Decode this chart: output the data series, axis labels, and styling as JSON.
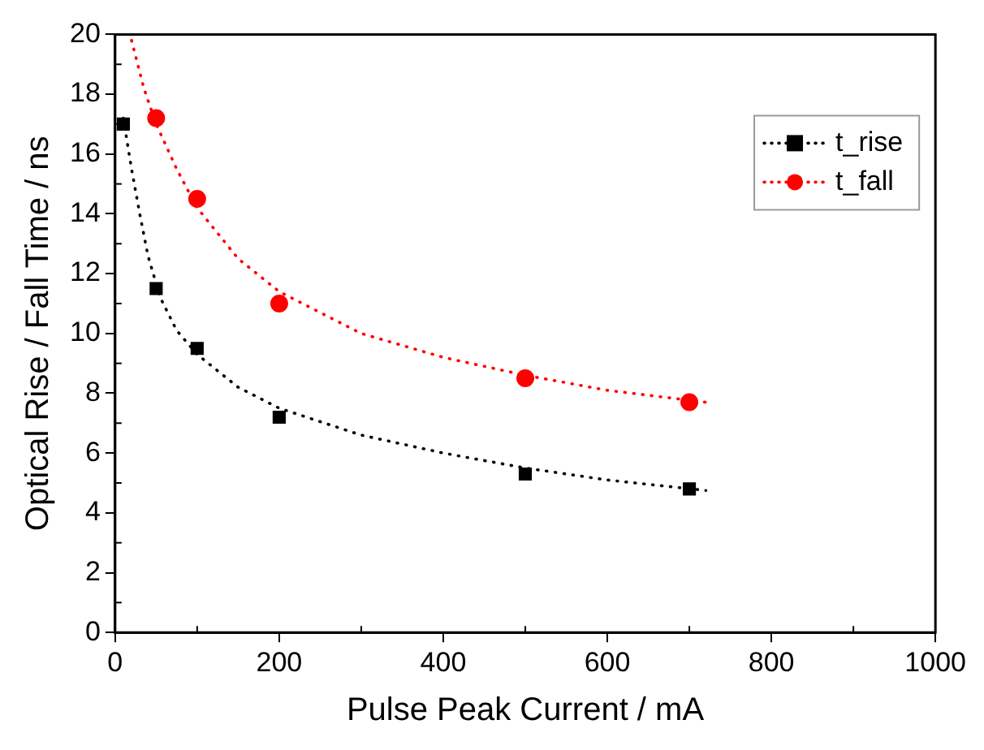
{
  "chart_data": {
    "type": "scatter",
    "xlabel": "Pulse Peak Current / mA",
    "ylabel": "Optical Rise / Fall Time / ns",
    "xlim": [
      0,
      1000
    ],
    "xticks": [
      0,
      200,
      400,
      600,
      800,
      1000
    ],
    "ylim": [
      0,
      20
    ],
    "yticks": [
      0,
      2,
      4,
      6,
      8,
      10,
      12,
      14,
      16,
      18,
      20
    ],
    "grid": false,
    "legend": "top right",
    "series": [
      {
        "name": "t_rise",
        "type": "scatter",
        "color": "#000000",
        "marker": "square",
        "x": [
          10,
          50,
          100,
          200,
          500,
          700
        ],
        "values": [
          17,
          11.5,
          9.5,
          7.2,
          5.3,
          4.8
        ]
      },
      {
        "name": "t_fall",
        "type": "scatter",
        "color": "#ff0000",
        "marker": "circle",
        "x": [
          50,
          100,
          200,
          500,
          700
        ],
        "values": [
          17.2,
          14.5,
          11,
          8.5,
          7.7
        ]
      },
      {
        "type": "line",
        "color": "#000000",
        "line_style": "dotted",
        "x": [
          10,
          20,
          30,
          40,
          55,
          75,
          100,
          150,
          200,
          300,
          400,
          500,
          600,
          720
        ],
        "values": [
          17.2,
          15.5,
          14,
          12.6,
          11.2,
          10.1,
          9.3,
          8.2,
          7.5,
          6.6,
          6.0,
          5.5,
          5.1,
          4.75
        ]
      },
      {
        "type": "line",
        "color": "#ff0000",
        "line_style": "dotted",
        "x": [
          20,
          35,
          50,
          75,
          100,
          150,
          200,
          300,
          400,
          500,
          600,
          720
        ],
        "values": [
          19.8,
          18.2,
          17,
          15.5,
          14.2,
          12.5,
          11.4,
          10,
          9.2,
          8.6,
          8.1,
          7.7
        ]
      }
    ]
  }
}
